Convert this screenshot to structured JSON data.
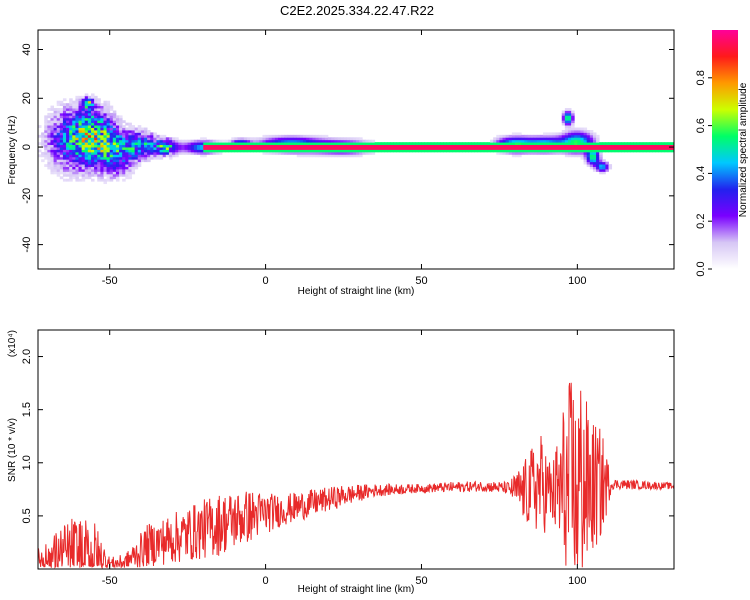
{
  "title": "C2E2.2025.334.22.47.R22",
  "chart_data": [
    {
      "type": "heatmap",
      "xlabel": "Height of straight line (km)",
      "ylabel": "Frequency (Hz)",
      "xlim": [
        -73,
        131
      ],
      "ylim": [
        -50,
        48
      ],
      "xticks": [
        "-50",
        "0",
        "50",
        "100"
      ],
      "yticks": [
        "40",
        "20",
        "0",
        "-20",
        "-40"
      ],
      "colorbar": {
        "label": "Normalized spectral amplitude",
        "range": [
          0,
          1
        ],
        "ticks": [
          "0.0",
          "0.2",
          "0.4",
          "0.6",
          "0.8"
        ],
        "colors": [
          "#ffffff",
          "#d6c6f5",
          "#7a00ff",
          "#2222ee",
          "#00c8ff",
          "#00ff66",
          "#ccff00",
          "#ff9900",
          "#ff1a1a",
          "#ff0099"
        ]
      },
      "band": {
        "center_hz": 0,
        "x_start": -20,
        "x_end": 131
      },
      "blobs": [
        {
          "x": -62,
          "f": 3,
          "wx": 8,
          "wf": 12,
          "amp": 0.35
        },
        {
          "x": -55,
          "f": 5,
          "wx": 6,
          "wf": 10,
          "amp": 0.45
        },
        {
          "x": -57,
          "f": 18,
          "wx": 1.5,
          "wf": 2,
          "amp": 0.55
        },
        {
          "x": -48,
          "f": -2,
          "wx": 6,
          "wf": 9,
          "amp": 0.35
        },
        {
          "x": -40,
          "f": 1,
          "wx": 5,
          "wf": 5,
          "amp": 0.4
        },
        {
          "x": -32,
          "f": 0,
          "wx": 4,
          "wf": 3,
          "amp": 0.45
        },
        {
          "x": -20,
          "f": 0,
          "wx": 6,
          "wf": 2.5,
          "amp": 0.45
        },
        {
          "x": -8,
          "f": 1,
          "wx": 3,
          "wf": 2,
          "amp": 0.5
        },
        {
          "x": 8,
          "f": 1,
          "wx": 10,
          "wf": 3,
          "amp": 0.5
        },
        {
          "x": 25,
          "f": 0,
          "wx": 10,
          "wf": 3,
          "amp": 0.35
        },
        {
          "x": 80,
          "f": 1,
          "wx": 6,
          "wf": 3,
          "amp": 0.55
        },
        {
          "x": 90,
          "f": 1,
          "wx": 6,
          "wf": 3,
          "amp": 0.5
        },
        {
          "x": 97,
          "f": 12,
          "wx": 1.5,
          "wf": 2.5,
          "amp": 0.6
        },
        {
          "x": 100,
          "f": 2,
          "wx": 5,
          "wf": 4,
          "amp": 0.55
        },
        {
          "x": 105,
          "f": -4,
          "wx": 2,
          "wf": 3,
          "amp": 0.55
        },
        {
          "x": 108,
          "f": -8,
          "wx": 2,
          "wf": 2,
          "amp": 0.45
        }
      ]
    },
    {
      "type": "line",
      "xlabel": "Height of straight line (km)",
      "ylabel": "SNR (10 * v/v)",
      "yscale_label": "(x10⁴)",
      "xlim": [
        -73,
        131
      ],
      "ylim": [
        0,
        2.25
      ],
      "xticks": [
        "-50",
        "0",
        "50",
        "100"
      ],
      "yticks": [
        "0.5",
        "1.0",
        "1.5",
        "2.0"
      ],
      "color": "#e82a2a",
      "envelope": [
        {
          "x": -73,
          "mean": 0.08,
          "amp": 0.12
        },
        {
          "x": -62,
          "mean": 0.15,
          "amp": 0.35
        },
        {
          "x": -55,
          "mean": 0.12,
          "amp": 0.35
        },
        {
          "x": -50,
          "mean": 0.05,
          "amp": 0.06
        },
        {
          "x": -45,
          "mean": 0.06,
          "amp": 0.08
        },
        {
          "x": -38,
          "mean": 0.22,
          "amp": 0.2
        },
        {
          "x": -28,
          "mean": 0.3,
          "amp": 0.25
        },
        {
          "x": -15,
          "mean": 0.42,
          "amp": 0.3
        },
        {
          "x": -5,
          "mean": 0.5,
          "amp": 0.25
        },
        {
          "x": 5,
          "mean": 0.55,
          "amp": 0.15
        },
        {
          "x": 15,
          "mean": 0.62,
          "amp": 0.13
        },
        {
          "x": 25,
          "mean": 0.69,
          "amp": 0.1
        },
        {
          "x": 35,
          "mean": 0.74,
          "amp": 0.06
        },
        {
          "x": 50,
          "mean": 0.76,
          "amp": 0.04
        },
        {
          "x": 60,
          "mean": 0.77,
          "amp": 0.05
        },
        {
          "x": 70,
          "mean": 0.78,
          "amp": 0.05
        },
        {
          "x": 78,
          "mean": 0.76,
          "amp": 0.06
        },
        {
          "x": 83,
          "mean": 0.72,
          "amp": 0.3
        },
        {
          "x": 88,
          "mean": 0.8,
          "amp": 0.5
        },
        {
          "x": 92,
          "mean": 0.7,
          "amp": 0.3
        },
        {
          "x": 96,
          "mean": 0.75,
          "amp": 0.9
        },
        {
          "x": 100,
          "mean": 0.8,
          "amp": 1.2
        },
        {
          "x": 104,
          "mean": 0.75,
          "amp": 0.7
        },
        {
          "x": 108,
          "mean": 0.8,
          "amp": 0.5
        },
        {
          "x": 111,
          "mean": 0.8,
          "amp": 0.05
        },
        {
          "x": 131,
          "mean": 0.78,
          "amp": 0.03
        }
      ]
    }
  ]
}
